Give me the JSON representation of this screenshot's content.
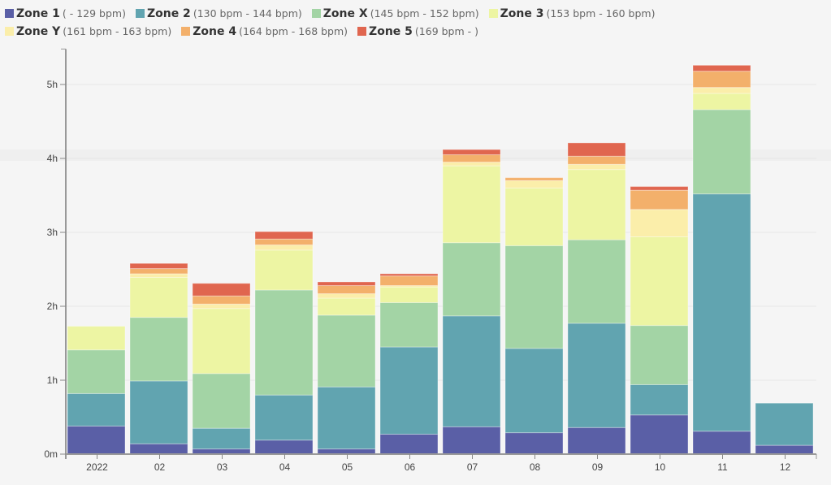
{
  "chart_data": {
    "type": "bar",
    "stacked": true,
    "title": "",
    "xlabel": "",
    "ylabel": "",
    "categories": [
      "2022",
      "02",
      "03",
      "04",
      "05",
      "06",
      "07",
      "08",
      "09",
      "10",
      "11",
      "12"
    ],
    "y_unit": "hours",
    "ylim": [
      0,
      5.48
    ],
    "y_ticks": [
      {
        "value": 0,
        "label": "0m"
      },
      {
        "value": 1,
        "label": "1h"
      },
      {
        "value": 2,
        "label": "2h"
      },
      {
        "value": 3,
        "label": "3h"
      },
      {
        "value": 4,
        "label": "4h"
      },
      {
        "value": 5,
        "label": "5h"
      }
    ],
    "grid": true,
    "legend_position": "top-left",
    "series": [
      {
        "name": "Zone 1",
        "range": "( - 129 bpm)",
        "color": "#5a5fa6",
        "values": [
          0.38,
          0.14,
          0.07,
          0.19,
          0.07,
          0.27,
          0.37,
          0.29,
          0.36,
          0.53,
          0.31,
          0.12
        ]
      },
      {
        "name": "Zone 2",
        "range": "(130 bpm - 144 bpm)",
        "color": "#61a4b0",
        "values": [
          0.44,
          0.85,
          0.28,
          0.61,
          0.84,
          1.18,
          1.5,
          1.14,
          1.41,
          0.41,
          3.21,
          0.57
        ]
      },
      {
        "name": "Zone X",
        "range": "(145 bpm - 152 bpm)",
        "color": "#a3d4a5",
        "values": [
          0.59,
          0.86,
          0.74,
          1.42,
          0.97,
          0.6,
          0.99,
          1.39,
          1.13,
          0.8,
          1.14,
          0
        ]
      },
      {
        "name": "Zone 3",
        "range": "(153 bpm - 160 bpm)",
        "color": "#edf5a3",
        "values": [
          0.32,
          0.54,
          0.88,
          0.54,
          0.23,
          0.21,
          1.04,
          0.78,
          0.95,
          1.2,
          0.22,
          0
        ]
      },
      {
        "name": "Zone Y",
        "range": "(161 bpm - 163 bpm)",
        "color": "#fbeeaa",
        "values": [
          0,
          0.05,
          0.06,
          0.07,
          0.06,
          0.02,
          0.05,
          0.1,
          0.07,
          0.37,
          0.08,
          0
        ]
      },
      {
        "name": "Zone 4",
        "range": "(164 bpm - 168 bpm)",
        "color": "#f3b06b",
        "values": [
          0,
          0.07,
          0.11,
          0.08,
          0.11,
          0.13,
          0.1,
          0.04,
          0.11,
          0.26,
          0.22,
          0
        ]
      },
      {
        "name": "Zone 5",
        "range": "(169 bpm - )",
        "color": "#e0664f",
        "values": [
          0,
          0.07,
          0.17,
          0.1,
          0.05,
          0.03,
          0.07,
          0,
          0.18,
          0.05,
          0.08,
          0
        ]
      }
    ]
  }
}
